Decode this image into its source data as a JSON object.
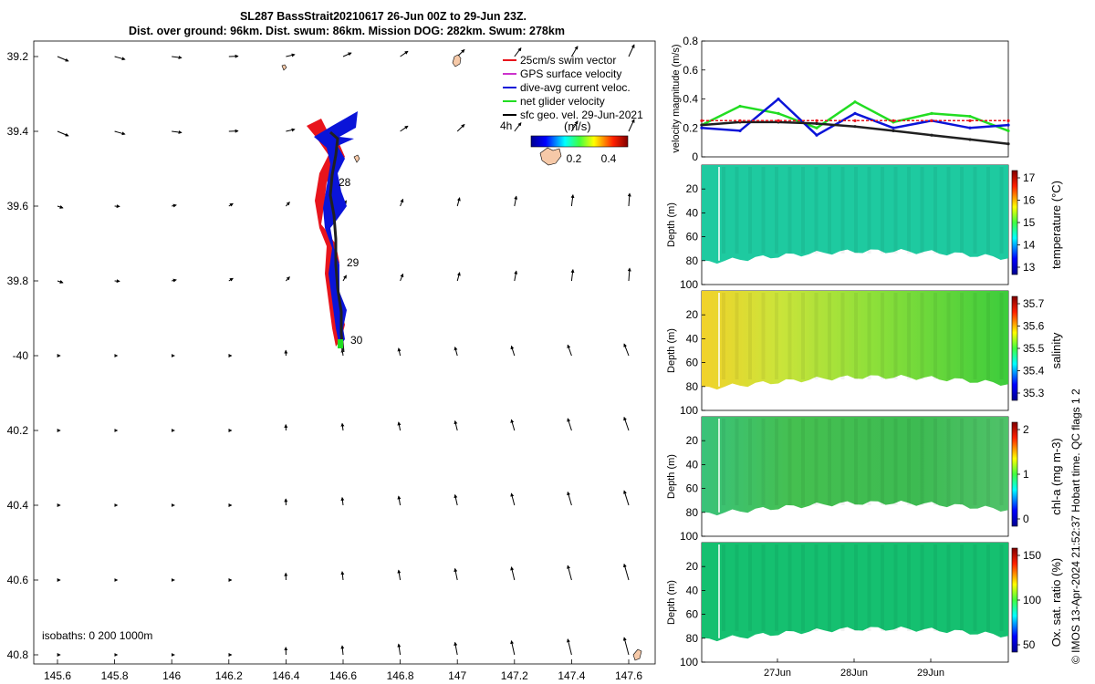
{
  "title_line1": "SL287 BassStrait20210617 26-Jun 00Z to 29-Jun 23Z.",
  "title_line2": "Dist. over ground: 96km. Dist. swum: 86km. Mission DOG: 282km. Swum: 278km",
  "map": {
    "lon_ticks": [
      "145.6",
      "145.8",
      "146",
      "146.2",
      "146.4",
      "146.6",
      "146.8",
      "147",
      "147.2",
      "147.4",
      "147.6"
    ],
    "lat_ticks": [
      "39.2",
      "39.4",
      "39.6",
      "39.8",
      "-40",
      "40.2",
      "40.4",
      "40.6",
      "40.8"
    ],
    "day_labels": [
      "28",
      "29",
      "30"
    ],
    "legend": [
      "25cm/s swim vector",
      "GPS surface velocity",
      "dive-avg current veloc.",
      "net glider velocity",
      "sfc geo. vel. 29-Jun-2021"
    ],
    "legend_colors": [
      "#e8141c",
      "#cc33cc",
      "#0a14d8",
      "#22dd22",
      "#000000"
    ],
    "colorbar_title": "(m/s)",
    "colorbar_prefix": "4h",
    "colorbar_ticks": [
      "0.2",
      "0.4"
    ],
    "isobaths_label": "isobaths: 0   200  1000m"
  },
  "panels": {
    "velocity_ylabel": "velocity magnitude (m/s)",
    "velocity_ticks": [
      "0.8",
      "0.6",
      "0.4",
      "0.2",
      "0"
    ],
    "depth_label": "Depth (m)",
    "depth_ticks": [
      "20",
      "40",
      "60",
      "80",
      "100"
    ],
    "temperature": {
      "label": "temperature (°C)",
      "ticks": [
        "17",
        "16",
        "15",
        "14",
        "13"
      ]
    },
    "salinity": {
      "label": "salinity",
      "ticks": [
        "35.7",
        "35.6",
        "35.5",
        "35.4",
        "35.3"
      ]
    },
    "chla": {
      "label": "chl-a (mg m-3)",
      "ticks": [
        "2",
        "1",
        "0"
      ]
    },
    "oxygen": {
      "label": "Ox. sat. ratio (%)",
      "ticks": [
        "150",
        "100",
        "50"
      ]
    },
    "time_ticks": [
      "27Jun",
      "28Jun",
      "29Jun"
    ]
  },
  "footer_credit": "© IMOS 13-Apr-2024 21:52:37 Hobart time. QC flags 1  2",
  "chart_data": {
    "type": "line",
    "title": "",
    "xlabel": "",
    "ylabel": "velocity magnitude (m/s)",
    "ylim": [
      0,
      0.8
    ],
    "x": [
      "26-Jun 00Z",
      "26-Jun 12Z",
      "27-Jun 00Z",
      "27-Jun 12Z",
      "28-Jun 00Z",
      "28-Jun 12Z",
      "29-Jun 00Z",
      "29-Jun 12Z",
      "29-Jun 23Z"
    ],
    "series": [
      {
        "values": [
          0.22,
          0.35,
          0.3,
          0.2,
          0.38,
          0.24,
          0.3,
          0.28,
          0.18
        ]
      },
      {
        "values": [
          0.2,
          0.18,
          0.4,
          0.15,
          0.3,
          0.2,
          0.25,
          0.2,
          0.22
        ]
      },
      {
        "values": [
          0.22,
          0.24,
          0.24,
          0.23,
          0.21,
          0.18,
          0.15,
          0.12,
          0.09
        ]
      },
      {
        "values": [
          0.25,
          0.25,
          0.25,
          0.25,
          0.25,
          0.25,
          0.25,
          0.25,
          0.25
        ]
      }
    ]
  }
}
